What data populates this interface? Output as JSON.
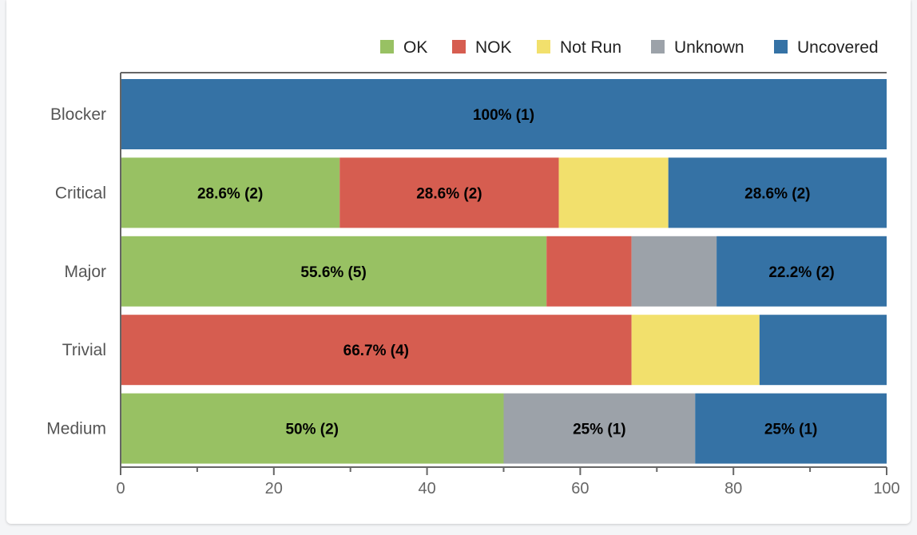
{
  "colors": {
    "top_bar": "#0747a6"
  },
  "chart_data": {
    "type": "bar",
    "orientation": "horizontal",
    "stacked": true,
    "categories": [
      "Blocker",
      "Critical",
      "Major",
      "Trivial",
      "Medium"
    ],
    "xlim": [
      0,
      100
    ],
    "xticks": [
      "0",
      "20",
      "40",
      "60",
      "80",
      "100"
    ],
    "legend_position": "top-right",
    "grid": false,
    "series": [
      {
        "name": "OK",
        "color": "#98c163",
        "values": [
          0,
          28.6,
          55.6,
          0,
          50
        ],
        "labels": [
          "",
          "28.6% (2)",
          "55.6% (5)",
          "",
          "50% (2)"
        ]
      },
      {
        "name": "NOK",
        "color": "#d65d50",
        "values": [
          0,
          28.6,
          11.1,
          66.7,
          0
        ],
        "labels": [
          "",
          "28.6% (2)",
          "",
          "66.7% (4)",
          ""
        ]
      },
      {
        "name": "Not Run",
        "color": "#f2e06c",
        "values": [
          0,
          14.3,
          0,
          16.7,
          0
        ],
        "labels": [
          "",
          "",
          "",
          "",
          ""
        ]
      },
      {
        "name": "Unknown",
        "color": "#9ca2a9",
        "values": [
          0,
          0,
          11.1,
          0,
          25
        ],
        "labels": [
          "",
          "",
          "",
          "",
          "25% (1)"
        ]
      },
      {
        "name": "Uncovered",
        "color": "#3572a5",
        "values": [
          100,
          28.6,
          22.2,
          16.7,
          25
        ],
        "labels": [
          "100% (1)",
          "28.6% (2)",
          "22.2% (2)",
          "",
          "25% (1)"
        ]
      }
    ]
  }
}
